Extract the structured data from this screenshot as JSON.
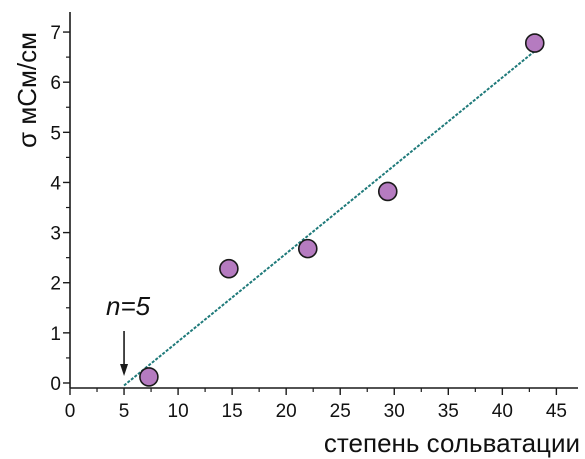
{
  "chart_data": {
    "type": "scatter",
    "xlabel": "степень сольватации",
    "ylabel": "σ мСм/см",
    "xlim": [
      0,
      47
    ],
    "ylim": [
      -0.1,
      7.4
    ],
    "x_ticks": [
      0,
      5,
      10,
      15,
      20,
      25,
      30,
      35,
      40,
      45
    ],
    "y_ticks": [
      0,
      1,
      2,
      3,
      4,
      5,
      6,
      7
    ],
    "grid": false,
    "points": [
      {
        "x": 7.3,
        "y": 0.12
      },
      {
        "x": 14.7,
        "y": 2.28
      },
      {
        "x": 22.0,
        "y": 2.68
      },
      {
        "x": 29.4,
        "y": 3.82
      },
      {
        "x": 43.0,
        "y": 6.78
      }
    ],
    "fit_line": {
      "x": [
        5.0,
        43.0
      ],
      "y": [
        -0.05,
        6.62
      ],
      "color": "#1f7a7a"
    },
    "annotation": {
      "text": "n=5",
      "x": 5.0,
      "y": 0.0
    },
    "colors": {
      "marker_fill": "#b57bc0",
      "marker_stroke": "#1a1a1a",
      "axis": "#1a1a1a"
    }
  }
}
